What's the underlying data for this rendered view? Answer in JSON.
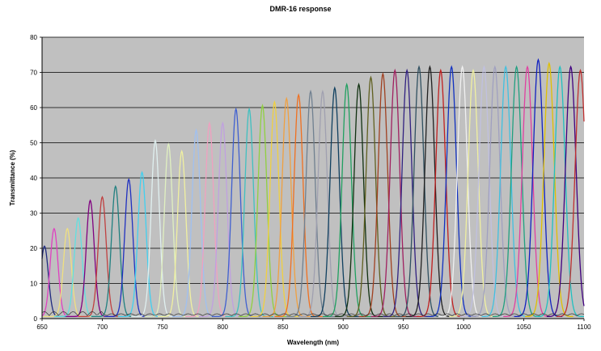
{
  "chart_data": {
    "type": "line",
    "title": "DMR-16 response",
    "xlabel": "Wavelength (nm)",
    "ylabel": "Transmittance (%)",
    "xlim": [
      650,
      1100
    ],
    "ylim": [
      0,
      80
    ],
    "x_ticks": [
      "650",
      "700",
      "750",
      "800",
      "850",
      "900",
      "950",
      "1000",
      "1050",
      "1100"
    ],
    "y_ticks": [
      "0",
      "10",
      "20",
      "30",
      "40",
      "50",
      "60",
      "70",
      "80"
    ],
    "grid": "horizontal",
    "plot_background": "#c0c0c0",
    "legend": "none",
    "series": [
      {
        "center": 652,
        "peak": 20,
        "color": "#1f2a80"
      },
      {
        "center": 660,
        "peak": 25,
        "color": "#e040c0"
      },
      {
        "center": 671,
        "peak": 25,
        "color": "#f0e080"
      },
      {
        "center": 680,
        "peak": 28,
        "color": "#60e0e0"
      },
      {
        "center": 690,
        "peak": 33,
        "color": "#800080"
      },
      {
        "center": 700,
        "peak": 34,
        "color": "#c04040"
      },
      {
        "center": 711,
        "peak": 37,
        "color": "#208080"
      },
      {
        "center": 722,
        "peak": 39,
        "color": "#2030c0"
      },
      {
        "center": 733,
        "peak": 41,
        "color": "#40d0f0"
      },
      {
        "center": 744,
        "peak": 50,
        "color": "#e0f0f0"
      },
      {
        "center": 755,
        "peak": 49,
        "color": "#e0f0c0"
      },
      {
        "center": 766,
        "peak": 47,
        "color": "#f0f0a0"
      },
      {
        "center": 778,
        "peak": 53,
        "color": "#a0c0f0"
      },
      {
        "center": 789,
        "peak": 55,
        "color": "#f0a0c0"
      },
      {
        "center": 800,
        "peak": 55,
        "color": "#c0a0e0"
      },
      {
        "center": 811,
        "peak": 59,
        "color": "#4060d0"
      },
      {
        "center": 822,
        "peak": 59,
        "color": "#40c0c0"
      },
      {
        "center": 833,
        "peak": 60,
        "color": "#90d040"
      },
      {
        "center": 843,
        "peak": 61,
        "color": "#f0d040"
      },
      {
        "center": 853,
        "peak": 62,
        "color": "#f0a040"
      },
      {
        "center": 863,
        "peak": 63,
        "color": "#f07020"
      },
      {
        "center": 873,
        "peak": 64,
        "color": "#708090"
      },
      {
        "center": 883,
        "peak": 64,
        "color": "#a0a0b0"
      },
      {
        "center": 893,
        "peak": 65,
        "color": "#104060"
      },
      {
        "center": 903,
        "peak": 66,
        "color": "#20a060"
      },
      {
        "center": 913,
        "peak": 66,
        "color": "#103010"
      },
      {
        "center": 923,
        "peak": 68,
        "color": "#606020"
      },
      {
        "center": 933,
        "peak": 69,
        "color": "#a04020"
      },
      {
        "center": 943,
        "peak": 70,
        "color": "#a02060"
      },
      {
        "center": 953,
        "peak": 70,
        "color": "#302080"
      },
      {
        "center": 963,
        "peak": 71,
        "color": "#305060"
      },
      {
        "center": 972,
        "peak": 71,
        "color": "#202020"
      },
      {
        "center": 981,
        "peak": 70,
        "color": "#c02020"
      },
      {
        "center": 990,
        "peak": 71,
        "color": "#1030c0"
      },
      {
        "center": 999,
        "peak": 71,
        "color": "#f0f0f0"
      },
      {
        "center": 1008,
        "peak": 70,
        "color": "#f0f0a0"
      },
      {
        "center": 1017,
        "peak": 71,
        "color": "#c0c0e0"
      },
      {
        "center": 1026,
        "peak": 71,
        "color": "#a0a0c0"
      },
      {
        "center": 1035,
        "peak": 71,
        "color": "#40c0e0"
      },
      {
        "center": 1044,
        "peak": 71,
        "color": "#20a080"
      },
      {
        "center": 1053,
        "peak": 71,
        "color": "#e040a0"
      },
      {
        "center": 1062,
        "peak": 73,
        "color": "#1020c0"
      },
      {
        "center": 1071,
        "peak": 72,
        "color": "#e0c000"
      },
      {
        "center": 1080,
        "peak": 71,
        "color": "#20c0c0"
      },
      {
        "center": 1089,
        "peak": 71,
        "color": "#400080"
      },
      {
        "center": 1097,
        "peak": 70,
        "color": "#c03030"
      }
    ]
  }
}
